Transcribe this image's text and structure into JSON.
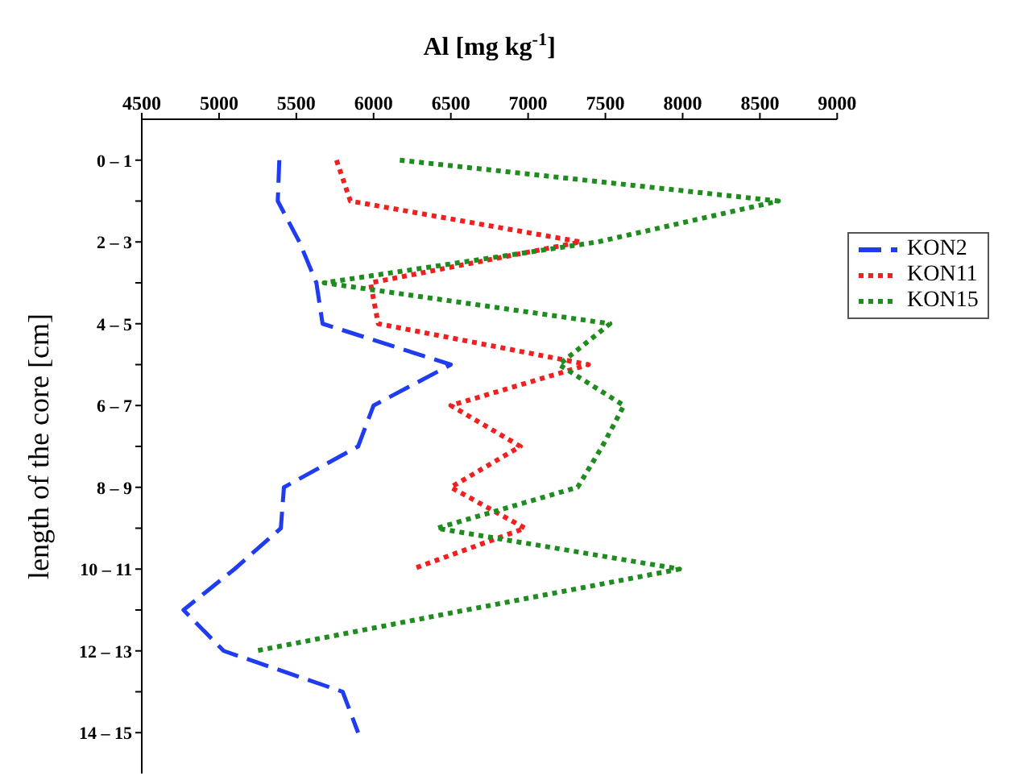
{
  "chart_data": {
    "type": "line",
    "xlabel": "Al [mg kg$^{-1}$]",
    "ylabel": "length of the core [cm]",
    "orientation": "horizontal",
    "categories": [
      "0 – 1",
      null,
      "2 – 3",
      null,
      "4 – 5",
      null,
      "6 – 7",
      null,
      "8 – 9",
      null,
      "10 – 11",
      null,
      "12 – 13",
      null,
      "14 – 15"
    ],
    "xlim": [
      4500,
      9000
    ],
    "xticks": [
      4500,
      5000,
      5500,
      6000,
      6500,
      7000,
      7500,
      8000,
      8500,
      9000
    ],
    "series": [
      {
        "name": "KON2",
        "color": "#1f3cf0",
        "line_style": "dashed",
        "values": [
          5390,
          5380,
          5520,
          5630,
          5670,
          6500,
          6000,
          5900,
          5420,
          5400,
          5100,
          4770,
          5030,
          5800,
          5900
        ]
      },
      {
        "name": "KON11",
        "color": "#f02020",
        "line_style": "dotted",
        "values": [
          5760,
          5850,
          7340,
          5980,
          6030,
          7390,
          6500,
          6950,
          6500,
          6980,
          6250,
          null,
          null,
          null,
          null
        ]
      },
      {
        "name": "KON15",
        "color": "#1e8c1e",
        "line_style": "dotted",
        "values": [
          6170,
          8620,
          7450,
          5680,
          7530,
          7200,
          7620,
          7480,
          7320,
          6410,
          7980,
          6600,
          5240,
          null,
          null
        ]
      }
    ],
    "legend": "right",
    "marker": "none"
  }
}
